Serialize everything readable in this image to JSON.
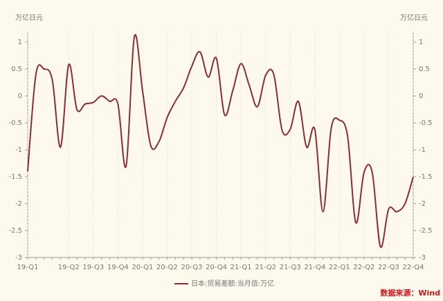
{
  "chart_data": {
    "type": "line",
    "y_unit_left": "万亿日元",
    "y_unit_right": "万亿日元",
    "source": "数据来源：Wind",
    "categories": [
      "19-Q1",
      null,
      null,
      null,
      null,
      "19-Q2",
      null,
      null,
      "19-Q3",
      null,
      null,
      "19-Q4",
      null,
      null,
      "20-Q1",
      null,
      null,
      "20-Q2",
      null,
      null,
      "20-Q3",
      null,
      null,
      "20-Q4",
      null,
      null,
      "21-Q1",
      null,
      null,
      "21-Q2",
      null,
      null,
      "21-Q3",
      null,
      null,
      "21-Q4",
      null,
      null,
      "22-Q1",
      null,
      null,
      "22-Q2",
      null,
      null,
      "22-Q3",
      null,
      null,
      "22-Q4"
    ],
    "series": [
      {
        "name": "日本:贸易差额:当月值:万亿",
        "color": "#8b2c35",
        "values": [
          -1.4,
          0.4,
          0.5,
          0.3,
          -0.95,
          0.58,
          -0.25,
          -0.15,
          -0.12,
          0.0,
          -0.1,
          -0.15,
          -1.3,
          1.1,
          0.1,
          -0.92,
          -0.85,
          -0.4,
          -0.1,
          0.15,
          0.55,
          0.82,
          0.35,
          0.7,
          -0.35,
          0.1,
          0.6,
          0.2,
          -0.2,
          0.38,
          0.4,
          -0.63,
          -0.62,
          -0.1,
          -0.95,
          -0.62,
          -2.15,
          -0.6,
          -0.45,
          -0.75,
          -2.35,
          -1.42,
          -1.42,
          -2.8,
          -2.1,
          -2.15,
          -2.0,
          -1.5
        ]
      }
    ],
    "ylim": [
      -3,
      1.2
    ],
    "yticks": [
      1,
      0.5,
      0,
      -0.5,
      -1,
      -1.5,
      -2,
      -2.5,
      -3
    ]
  }
}
